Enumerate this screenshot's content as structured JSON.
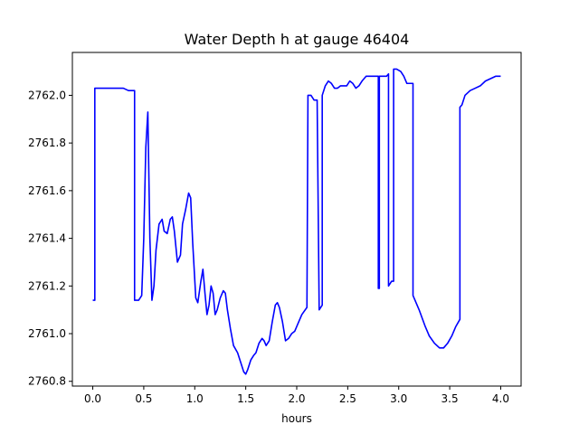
{
  "chart_data": {
    "type": "line",
    "title": "Water Depth h at gauge 46404",
    "xlabel": "hours",
    "ylabel": "",
    "xlim": [
      -0.2,
      4.2
    ],
    "ylim": [
      2760.78,
      2762.18
    ],
    "xticks": [
      0.0,
      0.5,
      1.0,
      1.5,
      2.0,
      2.5,
      3.0,
      3.5,
      4.0
    ],
    "xtick_labels": [
      "0.0",
      "0.5",
      "1.0",
      "1.5",
      "2.0",
      "2.5",
      "3.0",
      "3.5",
      "4.0"
    ],
    "yticks": [
      2760.8,
      2761.0,
      2761.2,
      2761.4,
      2761.6,
      2761.8,
      2762.0
    ],
    "ytick_labels": [
      "2760.8",
      "2761.0",
      "2761.2",
      "2761.4",
      "2761.6",
      "2761.8",
      "2762.0"
    ],
    "grid": false,
    "series": [
      {
        "color": "#0000ff",
        "x": [
          0.0,
          0.02,
          0.02,
          0.1,
          0.2,
          0.3,
          0.35,
          0.4,
          0.41,
          0.41,
          0.45,
          0.48,
          0.5,
          0.52,
          0.54,
          0.56,
          0.58,
          0.6,
          0.62,
          0.65,
          0.68,
          0.7,
          0.73,
          0.76,
          0.78,
          0.8,
          0.83,
          0.86,
          0.88,
          0.91,
          0.94,
          0.96,
          0.98,
          1.01,
          1.03,
          1.06,
          1.08,
          1.1,
          1.12,
          1.14,
          1.16,
          1.18,
          1.2,
          1.22,
          1.25,
          1.28,
          1.3,
          1.32,
          1.35,
          1.38,
          1.42,
          1.45,
          1.48,
          1.5,
          1.52,
          1.55,
          1.58,
          1.6,
          1.63,
          1.66,
          1.68,
          1.7,
          1.73,
          1.76,
          1.79,
          1.81,
          1.83,
          1.86,
          1.89,
          1.92,
          1.95,
          1.98,
          2.01,
          2.05,
          2.1,
          2.11,
          2.14,
          2.17,
          2.2,
          2.22,
          2.22,
          2.25,
          2.25,
          2.28,
          2.31,
          2.34,
          2.37,
          2.4,
          2.43,
          2.46,
          2.49,
          2.52,
          2.55,
          2.58,
          2.61,
          2.64,
          2.68,
          2.72,
          2.76,
          2.8,
          2.8,
          2.81,
          2.81,
          2.85,
          2.88,
          2.9,
          2.9,
          2.93,
          2.95,
          2.95,
          2.98,
          3.02,
          3.05,
          3.08,
          3.1,
          3.14,
          3.14,
          3.2,
          3.26,
          3.3,
          3.35,
          3.4,
          3.44,
          3.48,
          3.52,
          3.56,
          3.6,
          3.6,
          3.62,
          3.65,
          3.7,
          3.75,
          3.8,
          3.85,
          3.9,
          3.95,
          4.0
        ],
        "y": [
          2761.14,
          2761.14,
          2762.03,
          2762.03,
          2762.03,
          2762.03,
          2762.02,
          2762.02,
          2762.02,
          2761.14,
          2761.14,
          2761.16,
          2761.4,
          2761.78,
          2761.93,
          2761.4,
          2761.14,
          2761.2,
          2761.35,
          2761.46,
          2761.48,
          2761.43,
          2761.42,
          2761.48,
          2761.49,
          2761.43,
          2761.3,
          2761.33,
          2761.46,
          2761.52,
          2761.59,
          2761.57,
          2761.38,
          2761.15,
          2761.13,
          2761.22,
          2761.27,
          2761.17,
          2761.08,
          2761.12,
          2761.2,
          2761.17,
          2761.08,
          2761.1,
          2761.15,
          2761.18,
          2761.17,
          2761.1,
          2761.02,
          2760.95,
          2760.92,
          2760.88,
          2760.84,
          2760.83,
          2760.85,
          2760.89,
          2760.91,
          2760.92,
          2760.96,
          2760.98,
          2760.97,
          2760.95,
          2760.97,
          2761.05,
          2761.12,
          2761.13,
          2761.11,
          2761.05,
          2760.97,
          2760.98,
          2761.0,
          2761.01,
          2761.04,
          2761.08,
          2761.11,
          2762.0,
          2762.0,
          2761.98,
          2761.98,
          2761.1,
          2761.1,
          2761.12,
          2762.0,
          2762.04,
          2762.06,
          2762.05,
          2762.03,
          2762.03,
          2762.04,
          2762.04,
          2762.04,
          2762.06,
          2762.05,
          2762.03,
          2762.04,
          2762.06,
          2762.08,
          2762.08,
          2762.08,
          2762.08,
          2761.19,
          2761.19,
          2762.08,
          2762.08,
          2762.08,
          2762.09,
          2761.2,
          2761.22,
          2761.22,
          2762.11,
          2762.11,
          2762.1,
          2762.08,
          2762.05,
          2762.05,
          2762.05,
          2761.16,
          2761.1,
          2761.03,
          2760.99,
          2760.96,
          2760.94,
          2760.94,
          2760.96,
          2760.99,
          2761.03,
          2761.06,
          2761.95,
          2761.96,
          2762.0,
          2762.02,
          2762.03,
          2762.04,
          2762.06,
          2762.07,
          2762.08,
          2762.08
        ]
      }
    ]
  }
}
